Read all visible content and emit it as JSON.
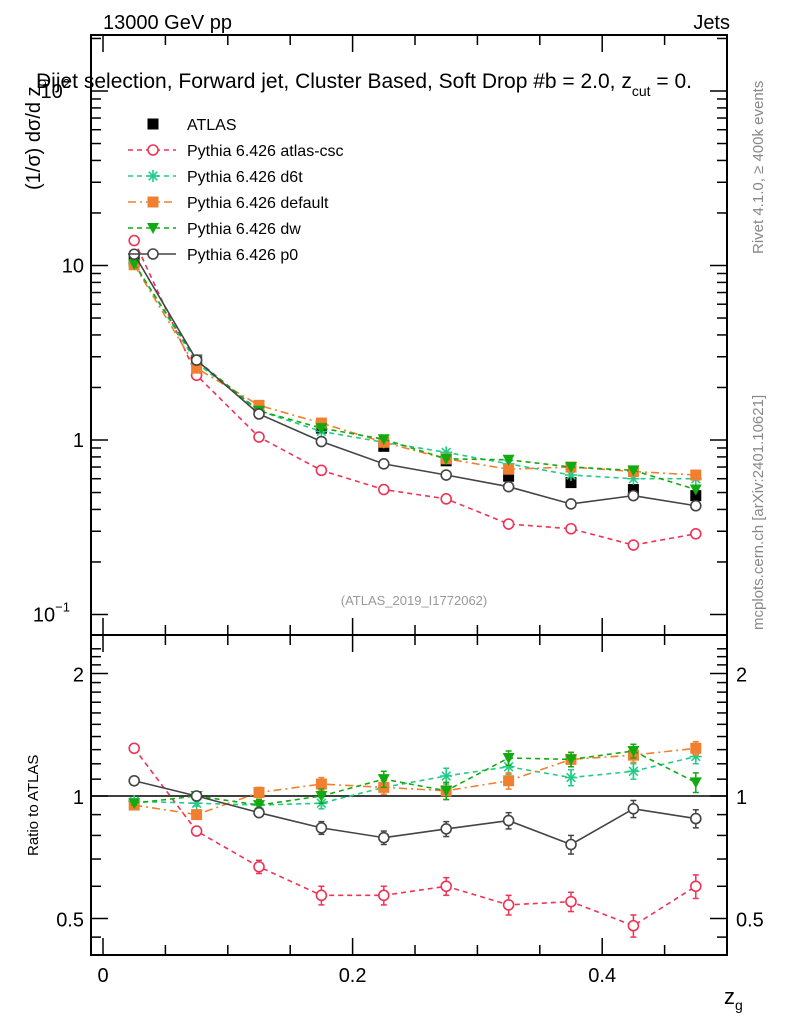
{
  "header": {
    "energy_label": "13000 GeV pp",
    "category_label": "Jets",
    "title": "Dijet selection, Forward jet, Cluster Based, Soft Drop #b = 2.0, z",
    "title_sub": "cut",
    "title_tail": " = 0."
  },
  "side_labels": {
    "rivet": "Rivet 4.1.0, ≥ 400k events",
    "mcplots": "mcplots.cern.ch [arXiv:2401.10621]"
  },
  "watermark": "(ATLAS_2019_I1772062)",
  "chart_data": [
    {
      "panel": "main",
      "type": "line",
      "title": "Dijet selection, Forward jet, Cluster Based, Soft Drop β = 2.0, z_cut = 0.",
      "xlabel": "z_g",
      "ylabel": "(1/σ) dσ/d z_g",
      "yscale": "log",
      "xlim": [
        -0.005,
        0.5
      ],
      "ylim": [
        0.07,
        200
      ],
      "y_tick_labels": [
        {
          "value": 100,
          "label": "10",
          "sup": "2"
        },
        {
          "value": 10,
          "label": "10",
          "sup": ""
        },
        {
          "value": 1,
          "label": "1",
          "sup": ""
        },
        {
          "value": 0.1,
          "label": "10",
          "sup": "−1"
        }
      ],
      "x": [
        0.025,
        0.075,
        0.125,
        0.175,
        0.225,
        0.275,
        0.325,
        0.375,
        0.425,
        0.475
      ],
      "legend_position": "top-left",
      "series": [
        {
          "name": "ATLAS",
          "color": "#000000",
          "marker": "square",
          "line": "none",
          "values": [
            10.6,
            2.87,
            1.55,
            1.17,
            0.92,
            0.76,
            0.62,
            0.57,
            0.52,
            0.48
          ]
        },
        {
          "name": "Pythia 6.426 atlas-csc",
          "color": "#ee3355",
          "marker": "open-circle",
          "line": "dashed",
          "values": [
            13.9,
            2.35,
            1.04,
            0.67,
            0.52,
            0.46,
            0.33,
            0.31,
            0.25,
            0.29
          ]
        },
        {
          "name": "Pythia 6.426 d6t",
          "color": "#22cc88",
          "marker": "star",
          "line": "dashed",
          "values": [
            10.3,
            2.76,
            1.47,
            1.12,
            0.97,
            0.85,
            0.73,
            0.63,
            0.6,
            0.6
          ]
        },
        {
          "name": "Pythia 6.426 default",
          "color": "#f08030",
          "marker": "square",
          "line": "dashdot",
          "values": [
            10.1,
            2.58,
            1.58,
            1.25,
            0.97,
            0.78,
            0.68,
            0.7,
            0.66,
            0.63
          ]
        },
        {
          "name": "Pythia 6.426 dw",
          "color": "#11aa11",
          "marker": "down-triangle",
          "line": "dashed",
          "values": [
            10.2,
            2.87,
            1.47,
            1.17,
            1.01,
            0.78,
            0.77,
            0.7,
            0.67,
            0.52
          ]
        },
        {
          "name": "Pythia 6.426 p0",
          "color": "#444444",
          "marker": "open-circle",
          "line": "solid",
          "values": [
            11.6,
            2.87,
            1.41,
            0.98,
            0.73,
            0.63,
            0.54,
            0.43,
            0.48,
            0.42
          ]
        }
      ]
    },
    {
      "panel": "ratio",
      "type": "line",
      "xlabel": "z_g",
      "ylabel": "Ratio to ATLAS",
      "yscale": "log",
      "xlim": [
        -0.005,
        0.5
      ],
      "ylim": [
        0.42,
        2.35
      ],
      "x_tick_labels": [
        "0",
        "0.2",
        "0.4"
      ],
      "x_tick_values": [
        0,
        0.2,
        0.4
      ],
      "y_tick_labels": [
        "0.5",
        "1",
        "2"
      ],
      "y_tick_values": [
        0.5,
        1,
        2
      ],
      "reference_line": 1,
      "x": [
        0.025,
        0.075,
        0.125,
        0.175,
        0.225,
        0.275,
        0.325,
        0.375,
        0.425,
        0.475
      ],
      "series": [
        {
          "name": "Pythia 6.426 atlas-csc",
          "color": "#ee3355",
          "marker": "open-circle",
          "line": "dashed",
          "values": [
            1.31,
            0.82,
            0.67,
            0.57,
            0.57,
            0.6,
            0.54,
            0.55,
            0.48,
            0.6
          ],
          "errors": [
            0.02,
            0.02,
            0.025,
            0.03,
            0.03,
            0.03,
            0.03,
            0.03,
            0.03,
            0.04
          ]
        },
        {
          "name": "Pythia 6.426 d6t",
          "color": "#22cc88",
          "marker": "star",
          "line": "dashed",
          "values": [
            0.97,
            0.96,
            0.95,
            0.96,
            1.05,
            1.12,
            1.18,
            1.11,
            1.15,
            1.25
          ],
          "errors": [
            0.01,
            0.015,
            0.02,
            0.03,
            0.04,
            0.05,
            0.05,
            0.05,
            0.05,
            0.05
          ]
        },
        {
          "name": "Pythia 6.426 default",
          "color": "#f08030",
          "marker": "square",
          "line": "dashdot",
          "values": [
            0.95,
            0.9,
            1.02,
            1.07,
            1.05,
            1.03,
            1.09,
            1.23,
            1.26,
            1.31
          ],
          "errors": [
            0.01,
            0.02,
            0.03,
            0.04,
            0.04,
            0.05,
            0.05,
            0.05,
            0.05,
            0.05
          ]
        },
        {
          "name": "Pythia 6.426 dw",
          "color": "#11aa11",
          "marker": "down-triangle",
          "line": "dashed",
          "values": [
            0.96,
            1.0,
            0.95,
            1.0,
            1.1,
            1.03,
            1.24,
            1.23,
            1.29,
            1.08
          ],
          "errors": [
            0.01,
            0.02,
            0.03,
            0.04,
            0.05,
            0.05,
            0.05,
            0.05,
            0.05,
            0.06
          ]
        },
        {
          "name": "Pythia 6.426 p0",
          "color": "#444444",
          "marker": "open-circle",
          "line": "solid",
          "values": [
            1.09,
            1.0,
            0.91,
            0.835,
            0.79,
            0.83,
            0.87,
            0.76,
            0.93,
            0.88
          ],
          "errors": [
            0.01,
            0.015,
            0.02,
            0.03,
            0.03,
            0.035,
            0.04,
            0.04,
            0.045,
            0.045
          ]
        }
      ]
    }
  ]
}
